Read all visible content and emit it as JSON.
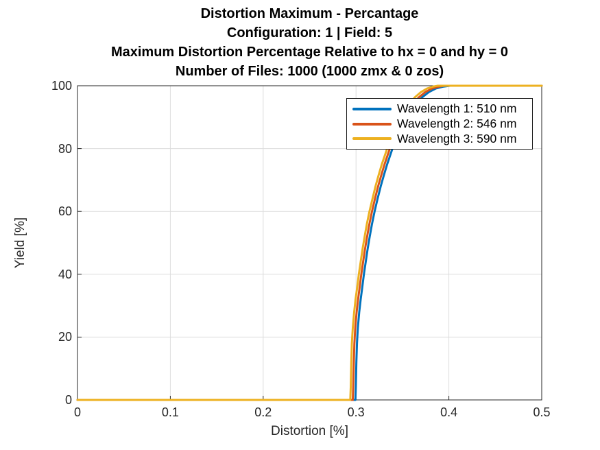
{
  "title_lines": [
    "Distortion Maximum - Percantage",
    "Configuration: 1 | Field: 5",
    "Maximum Distortion Percentage Relative to hx = 0 and hy = 0",
    "Number of Files: 1000 (1000 zmx &  0 zos)"
  ],
  "colors": {
    "axis": "#262626",
    "grid": "#dcdcdc",
    "background": "#ffffff",
    "series_blue": "#0072BD",
    "series_orange": "#D95319",
    "series_yellow": "#EDB120"
  },
  "chart_data": {
    "type": "line",
    "title": "Distortion Maximum - Percantage | Configuration: 1 | Field: 5 | Maximum Distortion Percentage Relative to hx = 0 and hy = 0 | Number of Files: 1000 (1000 zmx &  0 zos)",
    "xlabel": "Distortion [%]",
    "ylabel": "Yield [%]",
    "xlim": [
      0,
      0.5
    ],
    "ylim": [
      0,
      100
    ],
    "xticks": [
      0,
      0.1,
      0.2,
      0.3,
      0.4,
      0.5
    ],
    "xtick_labels": [
      "0",
      "0.1",
      "0.2",
      "0.3",
      "0.4",
      "0.5"
    ],
    "yticks": [
      0,
      20,
      40,
      60,
      80,
      100
    ],
    "ytick_labels": [
      "0",
      "20",
      "40",
      "60",
      "80",
      "100"
    ],
    "grid": true,
    "legend_position": "top-right",
    "series": [
      {
        "name": "Wavelength 1: 510 nm",
        "color": "#0072BD",
        "points": [
          [
            0,
            0
          ],
          [
            0.2993,
            0
          ],
          [
            0.2998,
            4
          ],
          [
            0.3004,
            12
          ],
          [
            0.301,
            18
          ],
          [
            0.302,
            23
          ],
          [
            0.3035,
            28
          ],
          [
            0.305,
            32
          ],
          [
            0.3068,
            36
          ],
          [
            0.3085,
            40
          ],
          [
            0.3105,
            44
          ],
          [
            0.3125,
            48
          ],
          [
            0.3148,
            52
          ],
          [
            0.3172,
            56
          ],
          [
            0.32,
            60
          ],
          [
            0.3232,
            64
          ],
          [
            0.3266,
            68
          ],
          [
            0.33,
            71.5
          ],
          [
            0.3335,
            75
          ],
          [
            0.3375,
            78.5
          ],
          [
            0.341,
            81.5
          ],
          [
            0.345,
            84.5
          ],
          [
            0.3495,
            87.5
          ],
          [
            0.354,
            90
          ],
          [
            0.3595,
            92.5
          ],
          [
            0.365,
            94.5
          ],
          [
            0.3715,
            96.4
          ],
          [
            0.3785,
            98
          ],
          [
            0.3858,
            99.1
          ],
          [
            0.3935,
            99.7
          ],
          [
            0.4013,
            100
          ],
          [
            0.5,
            100
          ]
        ]
      },
      {
        "name": "Wavelength 2: 546 nm",
        "color": "#D95319",
        "points": [
          [
            0,
            0
          ],
          [
            0.2965,
            0
          ],
          [
            0.297,
            4
          ],
          [
            0.2976,
            12
          ],
          [
            0.2982,
            18
          ],
          [
            0.2992,
            23
          ],
          [
            0.3007,
            28
          ],
          [
            0.3022,
            32
          ],
          [
            0.304,
            36
          ],
          [
            0.3057,
            40
          ],
          [
            0.3077,
            44
          ],
          [
            0.3097,
            48
          ],
          [
            0.312,
            52
          ],
          [
            0.3144,
            56
          ],
          [
            0.3172,
            60
          ],
          [
            0.3204,
            64
          ],
          [
            0.3238,
            68
          ],
          [
            0.3272,
            71.5
          ],
          [
            0.3307,
            75
          ],
          [
            0.3347,
            78.5
          ],
          [
            0.3382,
            81.5
          ],
          [
            0.342,
            84.5
          ],
          [
            0.3465,
            87.5
          ],
          [
            0.351,
            90
          ],
          [
            0.3562,
            92.5
          ],
          [
            0.3617,
            94.5
          ],
          [
            0.368,
            96.4
          ],
          [
            0.3747,
            98
          ],
          [
            0.3818,
            99.1
          ],
          [
            0.3888,
            99.7
          ],
          [
            0.3955,
            100
          ],
          [
            0.5,
            100
          ]
        ]
      },
      {
        "name": "Wavelength 3: 590 nm",
        "color": "#EDB120",
        "points": [
          [
            0,
            0
          ],
          [
            0.2938,
            0
          ],
          [
            0.2943,
            4
          ],
          [
            0.2949,
            12
          ],
          [
            0.2955,
            18
          ],
          [
            0.2965,
            23
          ],
          [
            0.298,
            28
          ],
          [
            0.2995,
            32
          ],
          [
            0.3013,
            36
          ],
          [
            0.303,
            40
          ],
          [
            0.305,
            44
          ],
          [
            0.307,
            48
          ],
          [
            0.3093,
            52
          ],
          [
            0.3117,
            56
          ],
          [
            0.3145,
            60
          ],
          [
            0.3177,
            64
          ],
          [
            0.321,
            68
          ],
          [
            0.3243,
            71.5
          ],
          [
            0.3278,
            75
          ],
          [
            0.3318,
            78.5
          ],
          [
            0.3352,
            81.5
          ],
          [
            0.339,
            84.5
          ],
          [
            0.3432,
            87.5
          ],
          [
            0.3475,
            90
          ],
          [
            0.3525,
            92.5
          ],
          [
            0.3577,
            94.5
          ],
          [
            0.3637,
            96.4
          ],
          [
            0.37,
            98
          ],
          [
            0.3765,
            99.1
          ],
          [
            0.3825,
            99.7
          ],
          [
            0.388,
            100
          ],
          [
            0.5,
            100
          ]
        ]
      }
    ]
  }
}
